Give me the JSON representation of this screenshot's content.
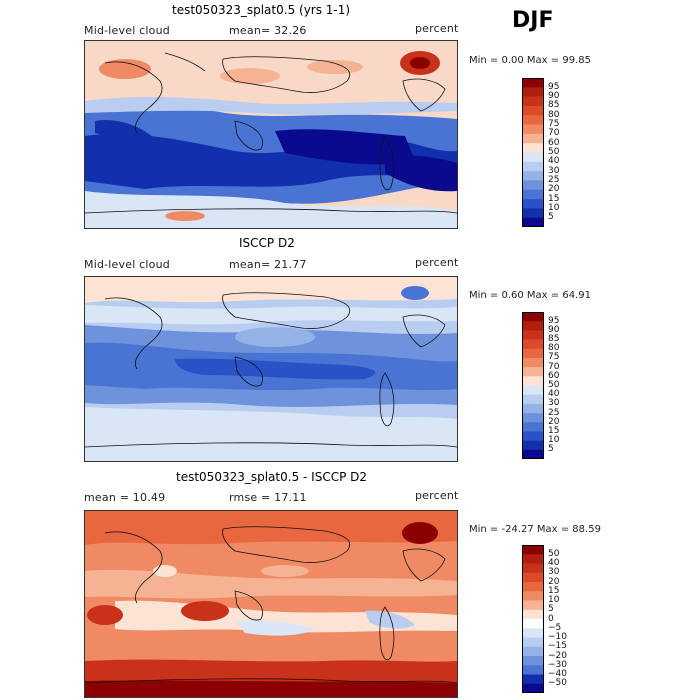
{
  "season": "DJF",
  "panels": [
    {
      "title": "test050323_splat0.5 (yrs 1-1)",
      "left_label": "Mid-level cloud",
      "mean_label": "mean=  32.26",
      "units": "percent",
      "minmax": "Min =   0.00 Max =  99.85",
      "levels": [
        "95",
        "90",
        "85",
        "80",
        "75",
        "70",
        "60",
        "50",
        "40",
        "30",
        "25",
        "20",
        "15",
        "10",
        "5"
      ],
      "colors": [
        "#8b0000",
        "#b01e0e",
        "#c9321a",
        "#dd4a2a",
        "#e8673f",
        "#f08a64",
        "#f6b394",
        "#fde3d4",
        "#d9e6f6",
        "#b8cdef",
        "#93b2e6",
        "#6e93dc",
        "#4a74d3",
        "#2a52c6",
        "#1230ad",
        "#0a0a8f"
      ]
    },
    {
      "title": "ISCCP D2",
      "left_label": "Mid-level cloud",
      "mean_label": "mean=  21.77",
      "units": "percent",
      "minmax": "Min =   0.60 Max =  64.91",
      "levels": [
        "95",
        "90",
        "85",
        "80",
        "75",
        "70",
        "60",
        "50",
        "40",
        "30",
        "25",
        "20",
        "15",
        "10",
        "5"
      ],
      "colors": [
        "#8b0000",
        "#b01e0e",
        "#c9321a",
        "#dd4a2a",
        "#e8673f",
        "#f08a64",
        "#f6b394",
        "#fde3d4",
        "#d9e6f6",
        "#b8cdef",
        "#93b2e6",
        "#6e93dc",
        "#4a74d3",
        "#2a52c6",
        "#1230ad",
        "#0a0a8f"
      ]
    },
    {
      "title": "test050323_splat0.5 - ISCCP D2",
      "left_label": "mean =  10.49",
      "mean_label": "rmse =  17.11",
      "units": "percent",
      "minmax": "Min = -24.27 Max =  88.59",
      "levels": [
        "50",
        "40",
        "30",
        "20",
        "15",
        "10",
        "5",
        "0",
        "−5",
        "−10",
        "−15",
        "−20",
        "−30",
        "−40",
        "−50"
      ],
      "colors": [
        "#8b0000",
        "#b01e0e",
        "#c9321a",
        "#dd4a2a",
        "#e8673f",
        "#f08a64",
        "#f6b394",
        "#fde3d4",
        "#ffffff",
        "#d9e6f6",
        "#b8cdef",
        "#93b2e6",
        "#6e93dc",
        "#4a74d3",
        "#1230ad",
        "#0a0a8f"
      ]
    }
  ]
}
